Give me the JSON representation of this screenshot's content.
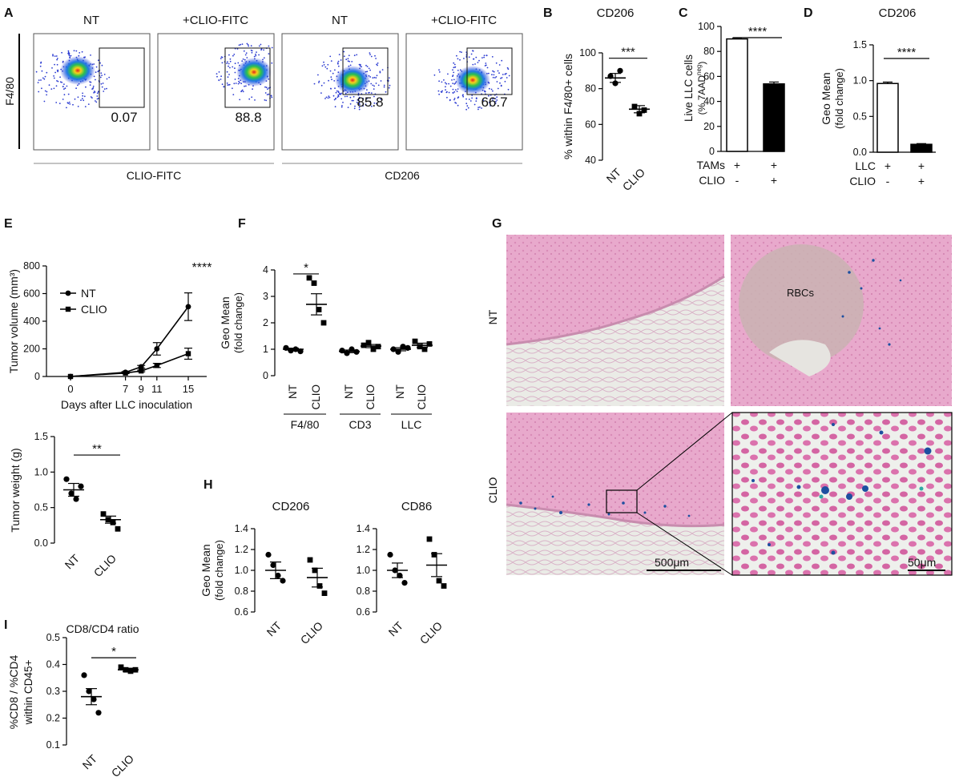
{
  "panel_letters": {
    "A": "A",
    "B": "B",
    "C": "C",
    "D": "D",
    "E": "E",
    "F": "F",
    "G": "G",
    "H": "H",
    "I": "I"
  },
  "flow": {
    "ylabel": "F4/80",
    "xlabel_left": "CLIO-FITC",
    "xlabel_right": "CD206",
    "plots": [
      {
        "title": "NT",
        "value": "0.07"
      },
      {
        "title": "+CLIO-FITC",
        "value": "88.8"
      },
      {
        "title": "NT",
        "value": "85.8"
      },
      {
        "title": "+CLIO-FITC",
        "value": "66.7"
      }
    ]
  },
  "histology": {
    "row_labels": [
      "NT",
      "CLIO"
    ],
    "rbc_label": "RBCs",
    "scale_big": "500μm",
    "scale_small": "50μm",
    "colors": {
      "tissue": "#e8a9cc",
      "nuclei": "#c9508f",
      "background": "#eceeea",
      "iron": "#1d4fa0"
    }
  },
  "chart_data": [
    {
      "id": "B",
      "type": "scatter",
      "title": "CD206",
      "ylabel": "% within F4/80+ cells",
      "categories": [
        "NT",
        "CLIO"
      ],
      "ylim": [
        40,
        100
      ],
      "yticks": [
        40,
        60,
        80,
        100
      ],
      "points": [
        [
          87,
          83,
          90
        ],
        [
          70,
          66,
          68
        ]
      ],
      "mean": [
        86,
        68.5
      ],
      "sem": [
        2.5,
        2
      ],
      "significance": "***"
    },
    {
      "id": "C",
      "type": "bar",
      "ylabel_main": "Live LLC cells",
      "ylabel_sub": "(% 7AAD",
      "ylabel_sup": "neg",
      "ylabel_close": ")",
      "ylim": [
        0,
        100
      ],
      "yticks": [
        0,
        20,
        40,
        60,
        80,
        100
      ],
      "values": [
        90,
        54
      ],
      "sem": [
        0.8,
        1.5
      ],
      "fills": [
        "#ffffff",
        "#000000"
      ],
      "row_labels": [
        "TAMs",
        "CLIO"
      ],
      "rows": [
        [
          "+",
          "+"
        ],
        [
          "-",
          "+"
        ]
      ],
      "significance": "****"
    },
    {
      "id": "D",
      "type": "bar",
      "title": "CD206",
      "ylabel": "Geo Mean",
      "ylabel2": "(fold change)",
      "ylim": [
        0,
        1.5
      ],
      "yticks": [
        0.0,
        0.5,
        1.0,
        1.5
      ],
      "ytick_labels": [
        "0.0",
        "0.5",
        "1.0",
        "1.5"
      ],
      "values": [
        0.96,
        0.11
      ],
      "sem": [
        0.02,
        0.01
      ],
      "fills": [
        "#ffffff",
        "#000000"
      ],
      "row_labels": [
        "LLC",
        "CLIO"
      ],
      "rows": [
        [
          "+",
          "+"
        ],
        [
          "-",
          "+"
        ]
      ],
      "significance": "****"
    },
    {
      "id": "E_top",
      "type": "line",
      "ylabel": "Tumor volume (mm³)",
      "xlabel": "Days after LLC inoculation",
      "x": [
        0,
        7,
        9,
        11,
        15
      ],
      "ylim": [
        0,
        800
      ],
      "yticks": [
        0,
        200,
        400,
        600,
        800
      ],
      "series": [
        {
          "name": "NT",
          "values": [
            0,
            30,
            70,
            200,
            505
          ],
          "sem": [
            0,
            5,
            10,
            45,
            100
          ],
          "marker": "circle"
        },
        {
          "name": "CLIO",
          "values": [
            0,
            25,
            40,
            80,
            165
          ],
          "sem": [
            0,
            4,
            6,
            15,
            40
          ],
          "marker": "square"
        }
      ],
      "significance": "****"
    },
    {
      "id": "E_bottom",
      "type": "scatter",
      "ylabel": "Tumor weight (g)",
      "categories": [
        "NT",
        "CLIO"
      ],
      "ylim": [
        0,
        1.5
      ],
      "yticks": [
        0.0,
        0.5,
        1.0,
        1.5
      ],
      "ytick_labels": [
        "0.0",
        "0.5",
        "1.0",
        "1.5"
      ],
      "points": [
        [
          0.9,
          0.7,
          0.62,
          0.8
        ],
        [
          0.41,
          0.33,
          0.29,
          0.2
        ]
      ],
      "mean": [
        0.75,
        0.33
      ],
      "sem": [
        0.09,
        0.05
      ],
      "significance": "**"
    },
    {
      "id": "F",
      "type": "scatter",
      "ylabel": "Geo Mean",
      "ylabel2": "(fold change)",
      "ylim": [
        0,
        4
      ],
      "yticks": [
        0,
        1,
        2,
        3,
        4
      ],
      "groups": [
        {
          "label": "F4/80",
          "categories": [
            "NT",
            "CLIO"
          ],
          "points": [
            [
              1.05,
              0.95,
              1.0,
              0.92
            ],
            [
              3.7,
              3.5,
              2.5,
              2.0
            ]
          ],
          "mean": [
            1.0,
            2.7
          ],
          "sem": [
            0.04,
            0.4
          ]
        },
        {
          "label": "CD3",
          "categories": [
            "NT",
            "CLIO"
          ],
          "points": [
            [
              0.95,
              0.85,
              1.0,
              0.9
            ],
            [
              1.15,
              1.25,
              1.0,
              1.1
            ]
          ],
          "mean": [
            0.92,
            1.12
          ],
          "sem": [
            0.05,
            0.06
          ]
        },
        {
          "label": "LLC",
          "categories": [
            "NT",
            "CLIO"
          ],
          "points": [
            [
              1.0,
              0.9,
              1.1,
              1.05
            ],
            [
              1.3,
              1.1,
              1.0,
              1.2
            ]
          ],
          "mean": [
            1.0,
            1.15
          ],
          "sem": [
            0.06,
            0.08
          ]
        }
      ],
      "significance": "*"
    },
    {
      "id": "H_CD206",
      "type": "scatter",
      "title": "CD206",
      "ylabel": "Geo Mean",
      "ylabel2": "(fold change)",
      "categories": [
        "NT",
        "CLIO"
      ],
      "ylim": [
        0.6,
        1.4
      ],
      "yticks": [
        0.6,
        0.8,
        1.0,
        1.2,
        1.4
      ],
      "ytick_labels": [
        "0.6",
        "0.8",
        "1.0",
        "1.2",
        "1.4"
      ],
      "points": [
        [
          1.15,
          1.05,
          0.95,
          0.9
        ],
        [
          1.1,
          1.0,
          0.85,
          0.78
        ]
      ],
      "mean": [
        1.0,
        0.93
      ],
      "sem": [
        0.08,
        0.09
      ]
    },
    {
      "id": "H_CD86",
      "type": "scatter",
      "title": "CD86",
      "ylabel": "",
      "categories": [
        "NT",
        "CLIO"
      ],
      "ylim": [
        0.6,
        1.4
      ],
      "yticks": [
        0.6,
        0.8,
        1.0,
        1.2,
        1.4
      ],
      "ytick_labels": [
        "0.6",
        "0.8",
        "1.0",
        "1.2",
        "1.4"
      ],
      "points": [
        [
          1.15,
          1.0,
          0.95,
          0.88
        ],
        [
          1.3,
          1.15,
          0.9,
          0.85
        ]
      ],
      "mean": [
        1.0,
        1.05
      ],
      "sem": [
        0.07,
        0.11
      ]
    },
    {
      "id": "I",
      "type": "scatter",
      "title": "CD8/CD4 ratio",
      "ylabel": "%CD8 / %CD4",
      "ylabel2": "within CD45+",
      "categories": [
        "NT",
        "CLIO"
      ],
      "ylim": [
        0.1,
        0.5
      ],
      "yticks": [
        0.1,
        0.2,
        0.3,
        0.4,
        0.5
      ],
      "ytick_labels": [
        "0.1",
        "0.2",
        "0.3",
        "0.4",
        "0.5"
      ],
      "points": [
        [
          0.36,
          0.3,
          0.27,
          0.22
        ],
        [
          0.39,
          0.38,
          0.375,
          0.38
        ]
      ],
      "mean": [
        0.28,
        0.38
      ],
      "sem": [
        0.03,
        0.006
      ],
      "significance": "*"
    }
  ]
}
